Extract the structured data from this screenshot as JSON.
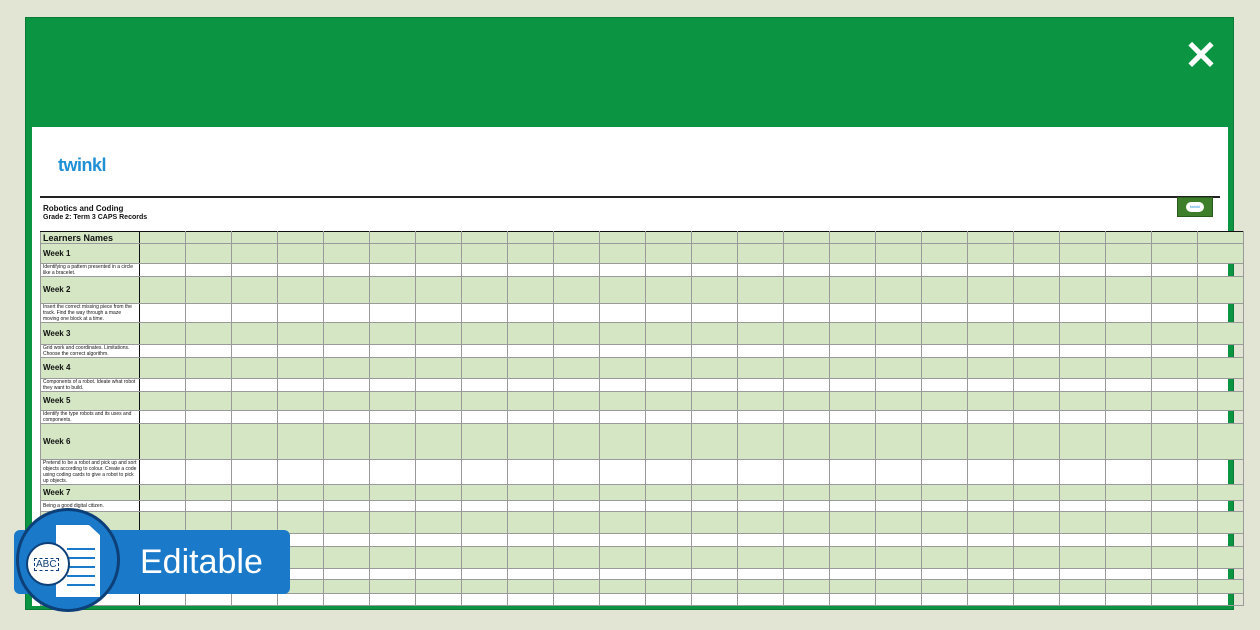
{
  "header": {
    "close_icon": "close-icon",
    "color": "#0b9442"
  },
  "logo": "twinkl",
  "title": "Robotics and Coding",
  "subtitle": "Grade 2: Term 3 CAPS Records",
  "table": {
    "header": "Learners Names",
    "rows": [
      {
        "type": "week",
        "label": "Week 1"
      },
      {
        "type": "task",
        "label": "Identifying a pattern presented in a circle like a bracelet."
      },
      {
        "type": "week",
        "label": "Week 2"
      },
      {
        "type": "task",
        "label": "Insert the correct missing piece from the track. Find the way through a maze moving one block at a time."
      },
      {
        "type": "week",
        "label": "Week 3"
      },
      {
        "type": "task",
        "label": "Grid work and coordinates. Limitations. Choose the correct algorithm."
      },
      {
        "type": "week",
        "label": "Week 4"
      },
      {
        "type": "task",
        "label": "Components of a robot. Ideate what robot they want to build."
      },
      {
        "type": "week",
        "label": "Week 5"
      },
      {
        "type": "task",
        "label": "Identify the type robots and its uses and components."
      },
      {
        "type": "week",
        "label": "Week 6"
      },
      {
        "type": "task",
        "label": "Pretend to be a robot and pick up and sort objects according to colour. Create a code using coding cards to give a robot to pick up objects."
      },
      {
        "type": "week",
        "label": "Week 7"
      },
      {
        "type": "task",
        "label": "Being a good digital citizen."
      },
      {
        "type": "week",
        "label": "Week 8"
      },
      {
        "type": "task",
        "label": "An ICT system uses computers, programs and networks."
      },
      {
        "type": "week",
        "label": ""
      },
      {
        "type": "task",
        "label": ""
      },
      {
        "type": "week",
        "label": ""
      },
      {
        "type": "task",
        "label": ""
      }
    ]
  },
  "badge": {
    "label": "Editable",
    "icon": "editable-document-icon",
    "abc": "ABC",
    "color": "#1a7ac9"
  }
}
